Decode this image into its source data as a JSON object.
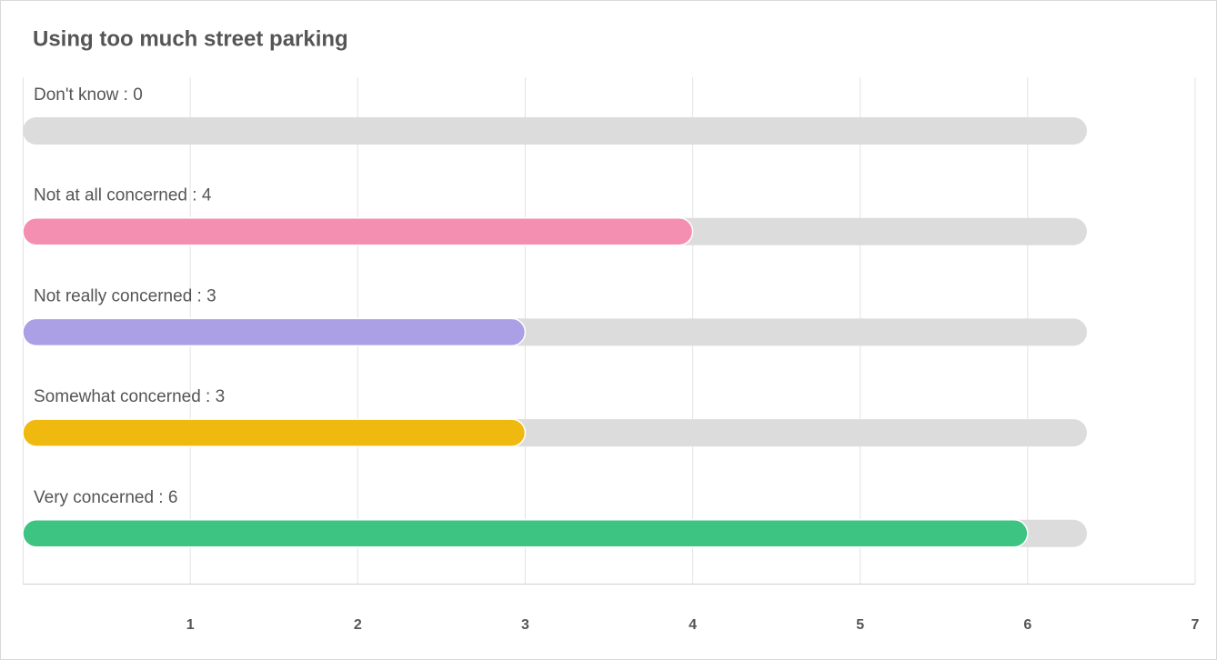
{
  "chart_data": {
    "type": "hbar",
    "title": "Using too much street parking",
    "categories": [
      "Don't know : 0",
      "Not at all concerned : 4",
      "Not really concerned : 3",
      "Somewhat concerned : 3",
      "Very concerned : 6"
    ],
    "values": [
      0,
      4,
      3,
      3,
      6
    ],
    "colors": [
      null,
      "#f48fb1",
      "#ab9fe6",
      "#f0b90f",
      "#3ec482"
    ],
    "xlim": [
      0,
      7
    ],
    "xticks": [
      1,
      2,
      3,
      4,
      5,
      6,
      7
    ],
    "grid": true
  }
}
